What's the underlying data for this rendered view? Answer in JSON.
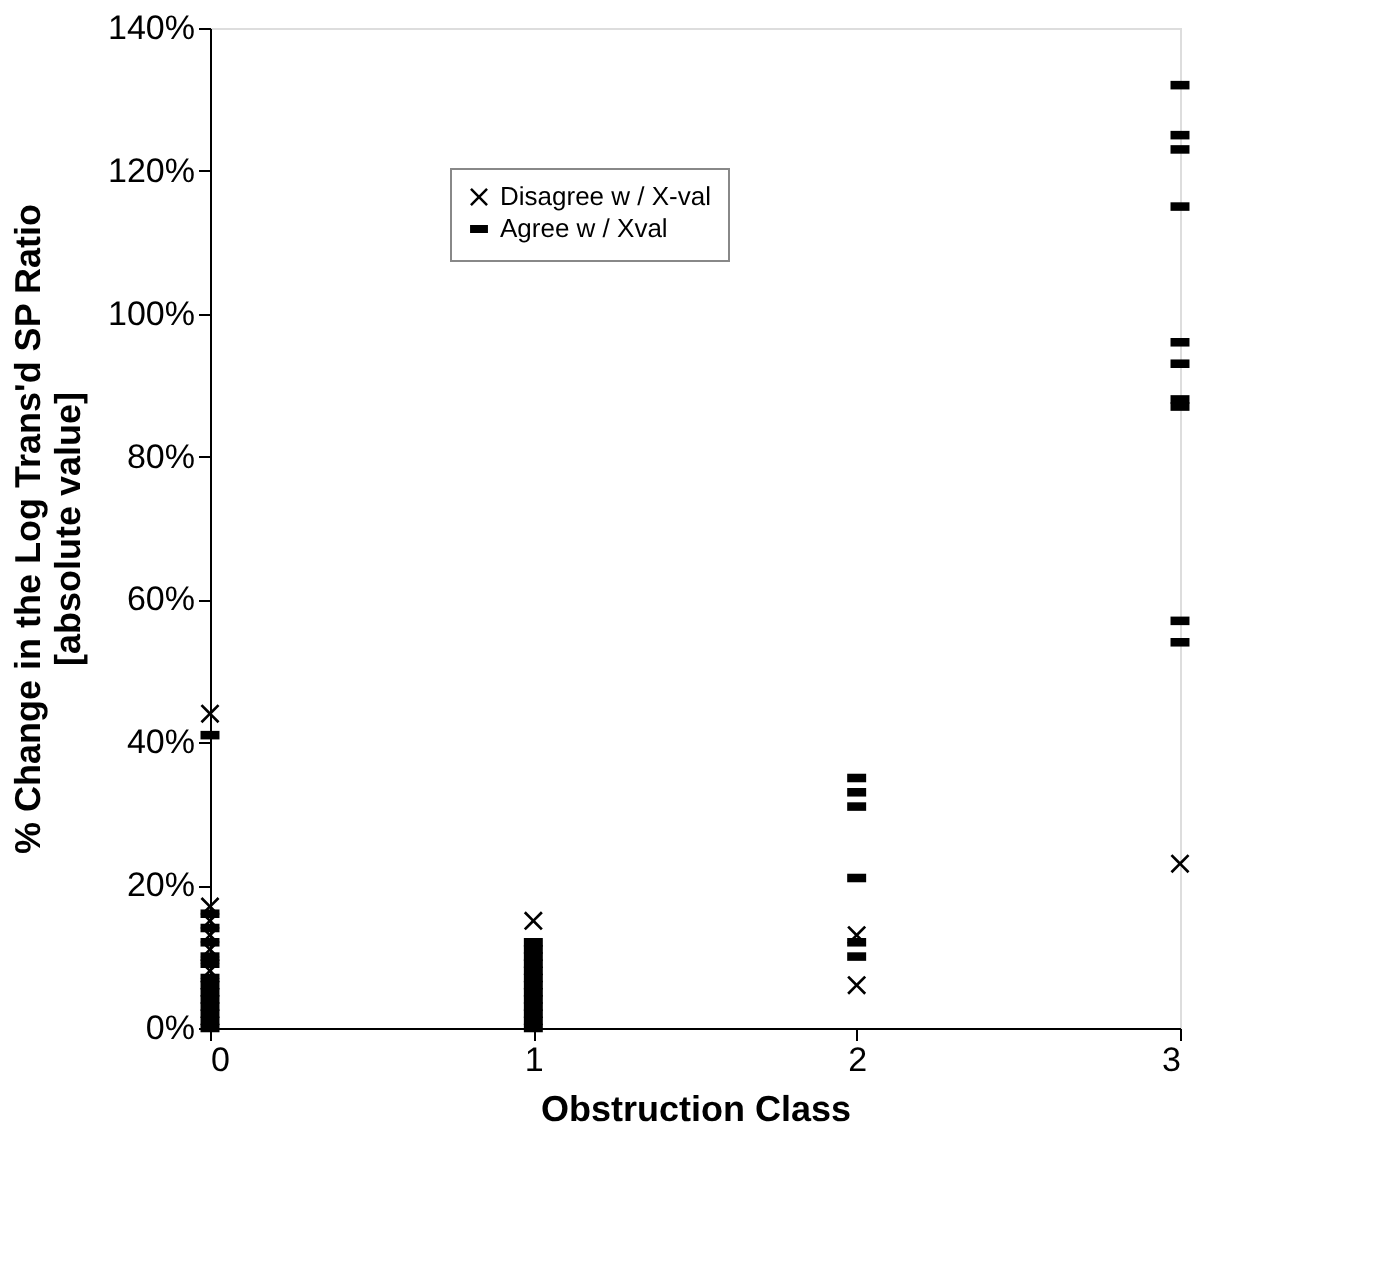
{
  "chart_data": {
    "type": "scatter",
    "xlabel": "Obstruction Class",
    "ylabel": "% Change in the Log Trans'd SP Ratio\n[absolute value]",
    "xlim": [
      0,
      3
    ],
    "xticks": [
      0,
      1,
      2,
      3
    ],
    "ylim": [
      0,
      140
    ],
    "yticks": [
      {
        "value": 0,
        "label": "0%"
      },
      {
        "value": 20,
        "label": "20%"
      },
      {
        "value": 40,
        "label": "40%"
      },
      {
        "value": 60,
        "label": "60%"
      },
      {
        "value": 80,
        "label": "80%"
      },
      {
        "value": 100,
        "label": "100%"
      },
      {
        "value": 120,
        "label": "120%"
      },
      {
        "value": 140,
        "label": "140%"
      }
    ],
    "grid": false,
    "legend": "top",
    "series": [
      {
        "name": "Disagree w / X-val",
        "color": "#000000",
        "marker": "cross",
        "x": [
          0,
          0,
          0,
          0,
          0,
          0,
          1,
          2,
          2,
          3
        ],
        "values": [
          44,
          17,
          15,
          13,
          11,
          8,
          15,
          13,
          6,
          23
        ]
      },
      {
        "name": "Agree w / Xval",
        "color": "#000000",
        "marker": "square",
        "x": [
          0,
          0,
          0,
          0,
          0,
          0,
          0,
          0,
          0,
          0,
          0,
          0,
          0,
          0,
          1,
          1,
          1,
          1,
          1,
          1,
          1,
          1,
          1,
          1,
          1,
          1,
          1,
          2,
          2,
          2,
          2,
          2,
          2,
          3,
          3,
          3,
          3,
          3,
          3,
          3,
          3,
          3,
          3
        ],
        "values": [
          41,
          16,
          14,
          12,
          10,
          9,
          7,
          6,
          5,
          4,
          3,
          2,
          1,
          0,
          12,
          11,
          10,
          9,
          8,
          7,
          6,
          5,
          4,
          3,
          2,
          1,
          0,
          35,
          33,
          31,
          21,
          12,
          10,
          132,
          125,
          123,
          115,
          96,
          93,
          88,
          87,
          57,
          54
        ]
      }
    ]
  }
}
